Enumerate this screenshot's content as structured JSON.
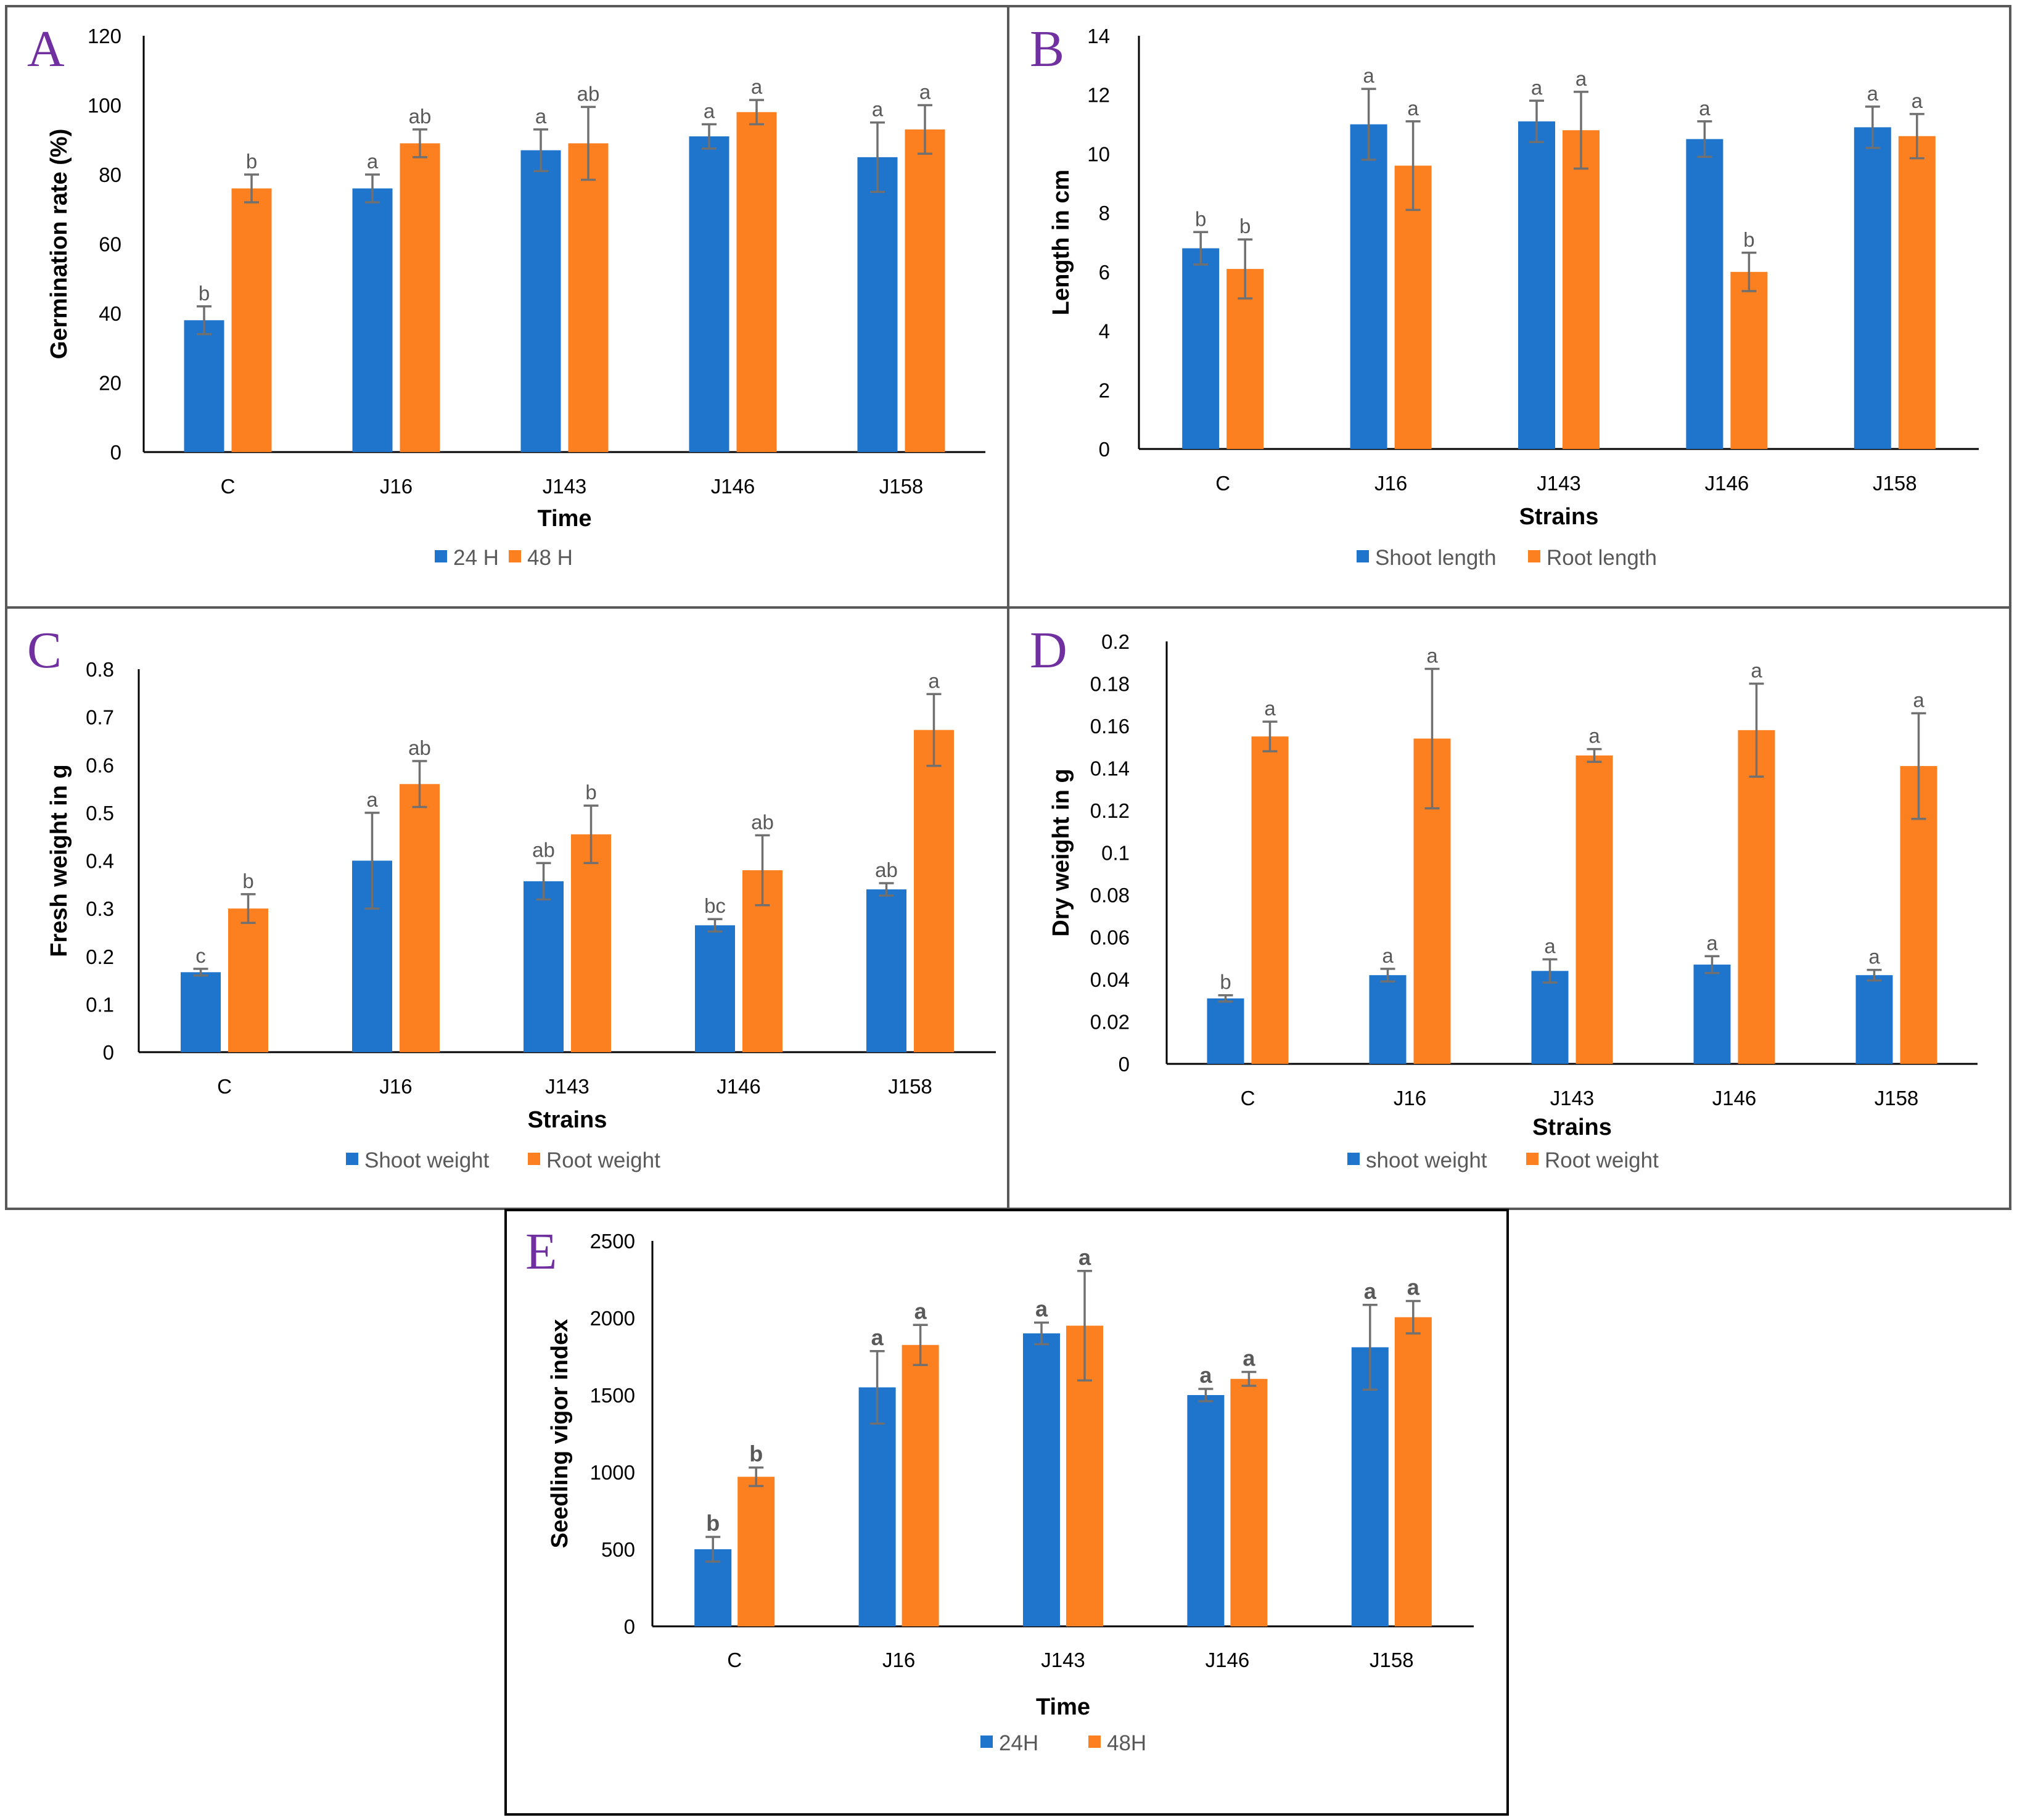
{
  "colors": {
    "series1": "#1f74cc",
    "series2": "#fc7f20",
    "error": "#707070",
    "letter": "#7030a0",
    "axis": "#000000"
  },
  "chart_data": [
    {
      "panel": "A",
      "type": "bar",
      "title": "",
      "categories": [
        "C",
        "J16",
        "J143",
        "J146",
        "J158"
      ],
      "series": [
        {
          "name": "24 H",
          "values": [
            38,
            76,
            87,
            91,
            85
          ],
          "errors": [
            4,
            4,
            6,
            3.5,
            10
          ],
          "labels": [
            "b",
            "a",
            "a",
            "a",
            "a"
          ]
        },
        {
          "name": "48 H",
          "values": [
            76,
            89,
            89,
            98,
            93
          ],
          "errors": [
            4,
            4,
            10.5,
            3.5,
            7
          ],
          "labels": [
            "b",
            "ab",
            "ab",
            "a",
            "a"
          ]
        }
      ],
      "xlabel": "Time",
      "ylabel": "Germination rate (%)",
      "ylim": [
        0,
        120
      ],
      "yticks": [
        "0",
        "20",
        "40",
        "60",
        "80",
        "100",
        "120"
      ],
      "legend": "bottom"
    },
    {
      "panel": "B",
      "type": "bar",
      "title": "",
      "categories": [
        "C",
        "J16",
        "J143",
        "J146",
        "J158"
      ],
      "series": [
        {
          "name": "Shoot length",
          "values": [
            6.8,
            11.0,
            11.1,
            10.5,
            10.9
          ],
          "errors": [
            0.55,
            1.2,
            0.7,
            0.6,
            0.7
          ],
          "labels": [
            "b",
            "a",
            "a",
            "a",
            "a"
          ]
        },
        {
          "name": "Root length",
          "values": [
            6.1,
            9.6,
            10.8,
            6.0,
            10.6
          ],
          "errors": [
            1.0,
            1.5,
            1.3,
            0.65,
            0.75
          ],
          "labels": [
            "b",
            "a",
            "a",
            "b",
            "a"
          ]
        }
      ],
      "xlabel": "Strains",
      "ylabel": "Length in cm",
      "ylim": [
        0,
        14
      ],
      "yticks": [
        "0",
        "2",
        "4",
        "6",
        "8",
        "10",
        "12",
        "14"
      ],
      "legend": "bottom"
    },
    {
      "panel": "C",
      "type": "bar",
      "title": "",
      "categories": [
        "C",
        "J16",
        "J143",
        "J146",
        "J158"
      ],
      "series": [
        {
          "name": "Shoot weight",
          "values": [
            0.167,
            0.4,
            0.357,
            0.265,
            0.34
          ],
          "errors": [
            0.007,
            0.1,
            0.038,
            0.013,
            0.013
          ],
          "labels": [
            "c",
            "a",
            "ab",
            "bc",
            "ab"
          ]
        },
        {
          "name": "Root weight",
          "values": [
            0.3,
            0.56,
            0.455,
            0.38,
            0.673
          ],
          "errors": [
            0.03,
            0.048,
            0.06,
            0.073,
            0.075
          ],
          "labels": [
            "b",
            "ab",
            "b",
            "ab",
            "a"
          ]
        }
      ],
      "xlabel": "Strains",
      "ylabel": "Fresh weight in g",
      "ylim": [
        0,
        0.8
      ],
      "yticks": [
        "0",
        "0.1",
        "0.2",
        "0.3",
        "0.4",
        "0.5",
        "0.6",
        "0.7",
        "0.8"
      ],
      "legend": "bottom"
    },
    {
      "panel": "D",
      "type": "bar",
      "title": "",
      "categories": [
        "C",
        "J16",
        "J143",
        "J146",
        "J158"
      ],
      "series": [
        {
          "name": "shoot weight",
          "values": [
            0.031,
            0.042,
            0.044,
            0.047,
            0.042
          ],
          "errors": [
            0.0015,
            0.003,
            0.0055,
            0.004,
            0.0025
          ],
          "labels": [
            "b",
            "a",
            "a",
            "a",
            "a"
          ]
        },
        {
          "name": "Root weight",
          "values": [
            0.155,
            0.154,
            0.146,
            0.158,
            0.141
          ],
          "errors": [
            0.007,
            0.033,
            0.003,
            0.022,
            0.025
          ],
          "labels": [
            "a",
            "a",
            "a",
            "a",
            "a"
          ]
        }
      ],
      "xlabel": "Strains",
      "ylabel": "Dry weight in g",
      "ylim": [
        0,
        0.2
      ],
      "yticks": [
        "0",
        "0.02",
        "0.04",
        "0.06",
        "0.08",
        "0.1",
        "0.12",
        "0.14",
        "0.16",
        "0.18",
        "0.2"
      ],
      "legend": "bottom"
    },
    {
      "panel": "E",
      "type": "bar",
      "title": "",
      "categories": [
        "C",
        "J16",
        "J143",
        "J146",
        "J158"
      ],
      "series": [
        {
          "name": "24H",
          "values": [
            500,
            1550,
            1900,
            1500,
            1810
          ],
          "errors": [
            80,
            235,
            70,
            40,
            275
          ],
          "labels": [
            "b",
            "a",
            "a",
            "a",
            "a"
          ]
        },
        {
          "name": "48H",
          "values": [
            970,
            1825,
            1950,
            1605,
            2005
          ],
          "errors": [
            60,
            130,
            355,
            45,
            105
          ],
          "labels": [
            "b",
            "a",
            "a",
            "a",
            "a"
          ]
        }
      ],
      "xlabel": "Time",
      "ylabel": "Seedling vigor index",
      "ylim": [
        0,
        2500
      ],
      "yticks": [
        "0",
        "500",
        "1000",
        "1500",
        "2000",
        "2500"
      ],
      "legend": "bottom"
    }
  ]
}
